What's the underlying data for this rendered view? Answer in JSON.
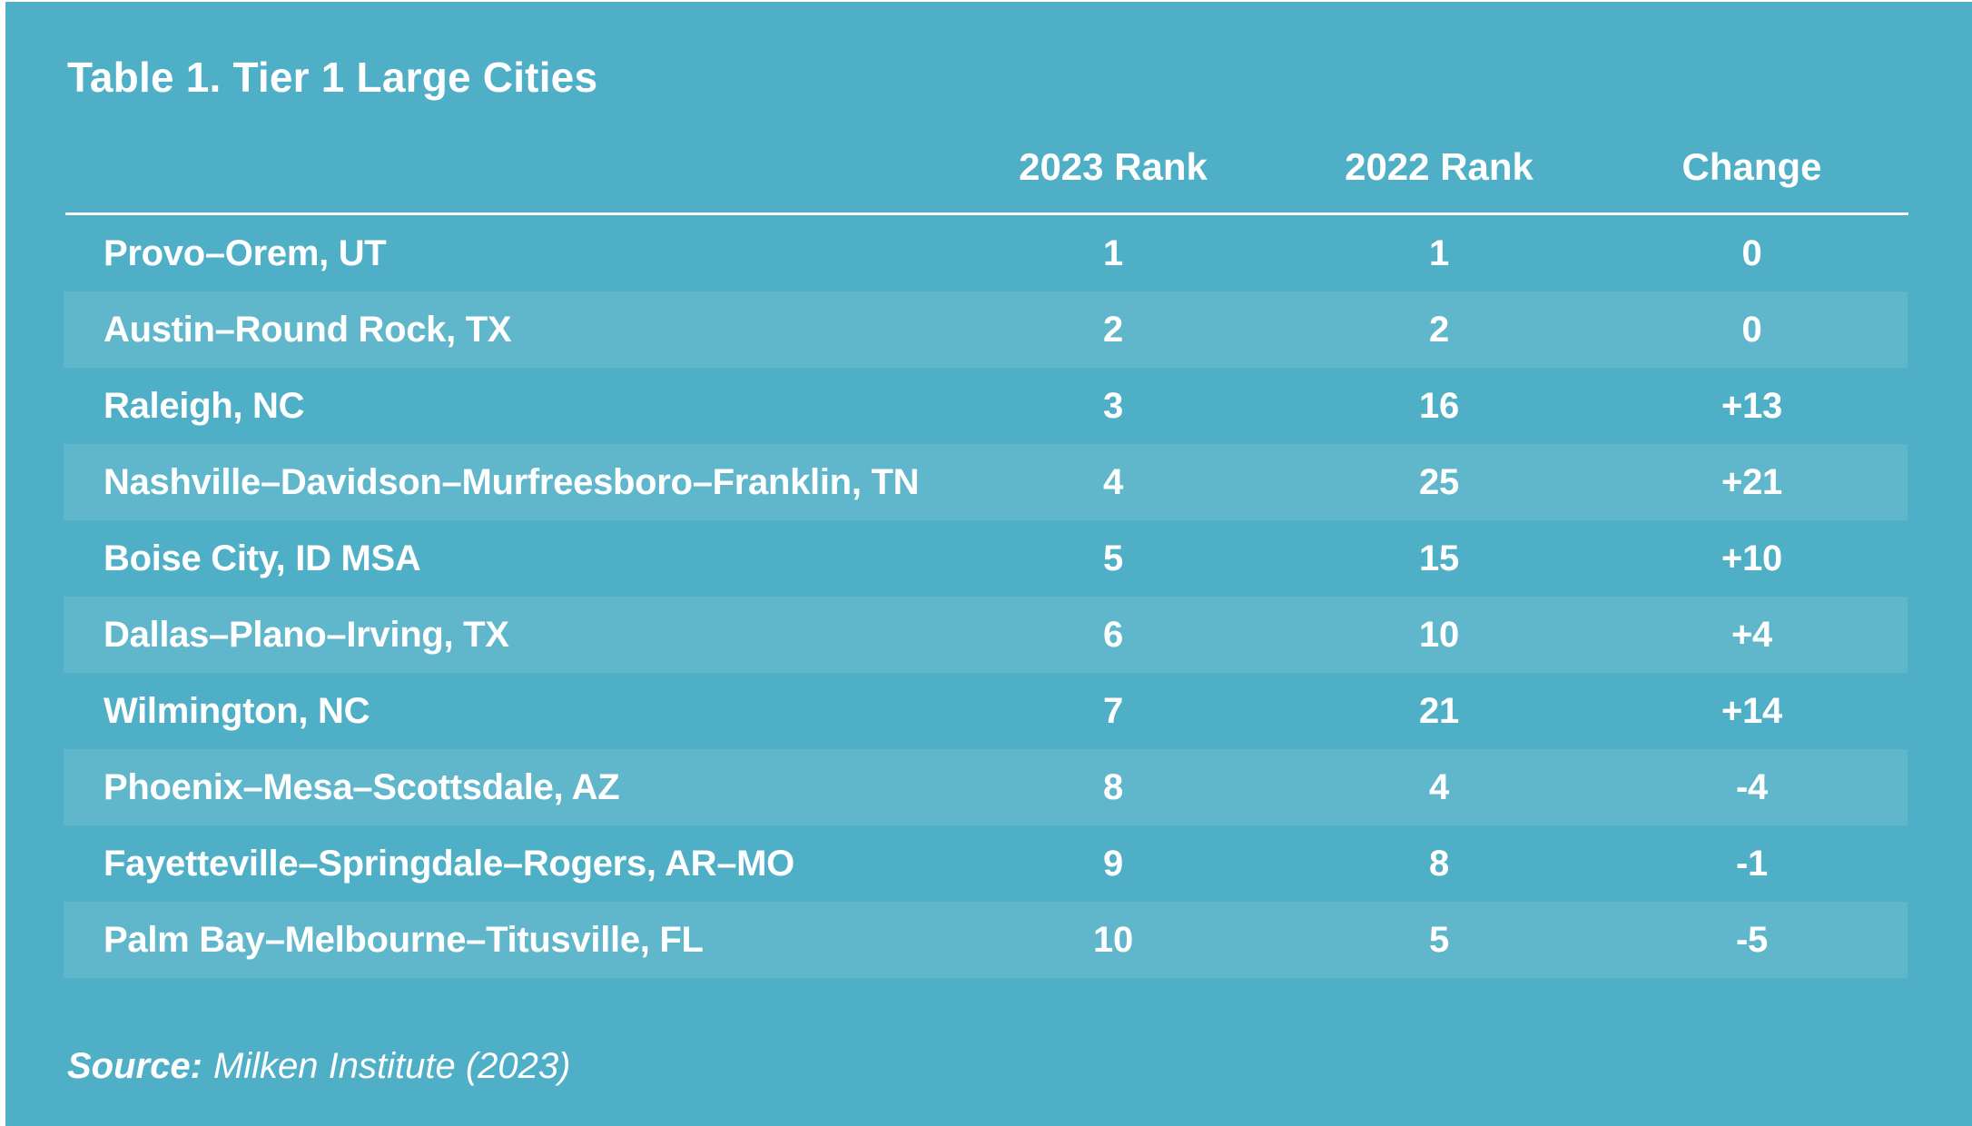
{
  "title": "Table 1. Tier 1 Large Cities",
  "table": {
    "columns": [
      "2023 Rank",
      "2022 Rank",
      "Change"
    ],
    "rows": [
      {
        "city": "Provo–Orem, UT",
        "rank_2023": "1",
        "rank_2022": "1",
        "change": "0"
      },
      {
        "city": "Austin–Round Rock, TX",
        "rank_2023": "2",
        "rank_2022": "2",
        "change": "0"
      },
      {
        "city": "Raleigh, NC",
        "rank_2023": "3",
        "rank_2022": "16",
        "change": "+13"
      },
      {
        "city": "Nashville–Davidson–Murfreesboro–Franklin, TN",
        "rank_2023": "4",
        "rank_2022": "25",
        "change": "+21"
      },
      {
        "city": "Boise City, ID MSA",
        "rank_2023": "5",
        "rank_2022": "15",
        "change": "+10"
      },
      {
        "city": "Dallas–Plano–Irving, TX",
        "rank_2023": "6",
        "rank_2022": "10",
        "change": "+4"
      },
      {
        "city": "Wilmington, NC",
        "rank_2023": "7",
        "rank_2022": "21",
        "change": "+14"
      },
      {
        "city": "Phoenix–Mesa–Scottsdale, AZ",
        "rank_2023": "8",
        "rank_2022": "4",
        "change": "-4"
      },
      {
        "city": "Fayetteville–Springdale–Rogers, AR–MO",
        "rank_2023": "9",
        "rank_2022": "8",
        "change": "-1"
      },
      {
        "city": "Palm Bay–Melbourne–Titusville, FL",
        "rank_2023": "10",
        "rank_2022": "5",
        "change": "-5"
      }
    ]
  },
  "source": {
    "label": "Source:",
    "text": "Milken Institute (2023)"
  },
  "colors": {
    "teal": "#4FAFC6",
    "stripe": "rgba(255,255,255,0.10)",
    "rule": "#FDFEFE",
    "text": "#FFFFFF",
    "page": "#FFFFFF"
  }
}
